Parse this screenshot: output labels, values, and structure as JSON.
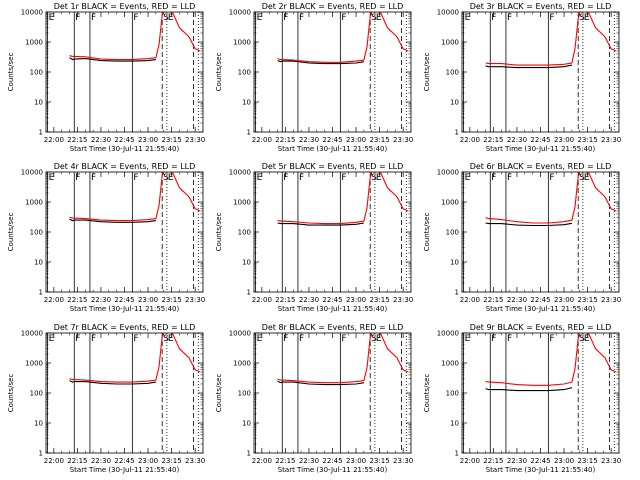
{
  "figure": {
    "xlabel": "Start Time (30-Jul-11 21:55:40)",
    "ylabel": "Counts/sec",
    "x_ticks": [
      "22:00",
      "22:15",
      "22:30",
      "22:45",
      "23:00",
      "23:15",
      "23:30"
    ],
    "y_ticks": [
      "1",
      "10",
      "100",
      "1000",
      "10000"
    ],
    "series_colors": {
      "events": "#000000",
      "lld": "#ff0000"
    }
  },
  "chart_data": [
    {
      "type": "line",
      "title": "Det 1r BLACK = Events, RED = LLD",
      "xlabel": "Start Time (30-Jul-11 21:55:40)",
      "ylabel": "Counts/sec",
      "y_scale": "log",
      "ylim": [
        1,
        10000
      ],
      "xlim": [
        "21:55",
        "23:35"
      ],
      "markers": [
        {
          "label": "E",
          "time": "21:56",
          "style": "solid"
        },
        {
          "label": "F",
          "time": "22:13",
          "style": "solid"
        },
        {
          "label": "F",
          "time": "22:23",
          "style": "solid"
        },
        {
          "label": "F",
          "time": "22:50",
          "style": "solid"
        },
        {
          "label": "S",
          "time": "23:09",
          "style": "dashed"
        },
        {
          "label": "E",
          "time": "23:12",
          "style": "dotted"
        },
        {
          "label": "",
          "time": "23:29",
          "style": "dashed"
        },
        {
          "label": "",
          "time": "23:32",
          "style": "dotted"
        }
      ],
      "x": [
        "22:10",
        "22:12",
        "22:13",
        "22:20",
        "22:30",
        "22:40",
        "22:50",
        "23:00",
        "23:05",
        "23:07",
        "23:09",
        "23:11",
        "23:14",
        "23:20",
        "23:26",
        "23:30",
        "23:33"
      ],
      "series": [
        {
          "values": [
            300,
            260,
            270,
            280,
            240,
            230,
            230,
            240,
            260,
            null,
            null,
            null,
            null,
            null,
            null,
            null,
            null
          ]
        },
        {
          "values": [
            350,
            330,
            330,
            320,
            270,
            260,
            260,
            280,
            300,
            800,
            8000,
            15000,
            15000,
            3000,
            1500,
            600,
            500
          ]
        }
      ]
    },
    {
      "type": "line",
      "title": "Det 2r BLACK = Events, RED = LLD",
      "xlabel": "Start Time (30-Jul-11 21:55:40)",
      "ylabel": "Counts/sec",
      "y_scale": "log",
      "ylim": [
        1,
        10000
      ],
      "xlim": [
        "21:55",
        "23:35"
      ],
      "markers": [
        {
          "label": "E",
          "time": "21:56",
          "style": "solid"
        },
        {
          "label": "F",
          "time": "22:13",
          "style": "solid"
        },
        {
          "label": "F",
          "time": "22:23",
          "style": "solid"
        },
        {
          "label": "F",
          "time": "22:50",
          "style": "solid"
        },
        {
          "label": "S",
          "time": "23:09",
          "style": "dashed"
        },
        {
          "label": "E",
          "time": "23:12",
          "style": "dotted"
        },
        {
          "label": "",
          "time": "23:29",
          "style": "dashed"
        },
        {
          "label": "",
          "time": "23:32",
          "style": "dotted"
        }
      ],
      "x": [
        "22:10",
        "22:12",
        "22:13",
        "22:20",
        "22:30",
        "22:40",
        "22:50",
        "23:00",
        "23:05",
        "23:07",
        "23:09",
        "23:11",
        "23:14",
        "23:20",
        "23:26",
        "23:30",
        "23:33"
      ],
      "series": [
        {
          "values": [
            240,
            220,
            230,
            230,
            200,
            190,
            190,
            200,
            220,
            null,
            null,
            null,
            null,
            null,
            null,
            null,
            null
          ]
        },
        {
          "values": [
            280,
            260,
            260,
            250,
            220,
            210,
            210,
            230,
            250,
            700,
            7000,
            15000,
            15000,
            3000,
            1500,
            600,
            500
          ]
        }
      ]
    },
    {
      "type": "line",
      "title": "Det 3r BLACK = Events, RED = LLD",
      "xlabel": "Start Time (30-Jul-11 21:55:40)",
      "ylabel": "Counts/sec",
      "y_scale": "log",
      "ylim": [
        1,
        10000
      ],
      "xlim": [
        "21:55",
        "23:35"
      ],
      "markers": [
        {
          "label": "E",
          "time": "21:56",
          "style": "solid"
        },
        {
          "label": "F",
          "time": "22:13",
          "style": "solid"
        },
        {
          "label": "F",
          "time": "22:23",
          "style": "solid"
        },
        {
          "label": "F",
          "time": "22:50",
          "style": "solid"
        },
        {
          "label": "S",
          "time": "23:09",
          "style": "dashed"
        },
        {
          "label": "E",
          "time": "23:12",
          "style": "dotted"
        },
        {
          "label": "",
          "time": "23:29",
          "style": "dashed"
        },
        {
          "label": "",
          "time": "23:32",
          "style": "dotted"
        }
      ],
      "x": [
        "22:10",
        "22:12",
        "22:13",
        "22:20",
        "22:30",
        "22:40",
        "22:50",
        "23:00",
        "23:05",
        "23:07",
        "23:09",
        "23:11",
        "23:14",
        "23:20",
        "23:26",
        "23:30",
        "23:33"
      ],
      "series": [
        {
          "values": [
            160,
            150,
            150,
            150,
            140,
            140,
            140,
            150,
            170,
            null,
            null,
            null,
            null,
            null,
            null,
            null,
            null
          ]
        },
        {
          "values": [
            200,
            190,
            190,
            190,
            170,
            170,
            170,
            180,
            200,
            600,
            6000,
            15000,
            15000,
            3000,
            1500,
            600,
            500
          ]
        }
      ]
    },
    {
      "type": "line",
      "title": "Det 4r BLACK = Events, RED = LLD",
      "xlabel": "Start Time (30-Jul-11 21:55:40)",
      "ylabel": "Counts/sec",
      "y_scale": "log",
      "ylim": [
        1,
        10000
      ],
      "xlim": [
        "21:55",
        "23:35"
      ],
      "markers": [
        {
          "label": "E",
          "time": "21:56",
          "style": "solid"
        },
        {
          "label": "F",
          "time": "22:13",
          "style": "solid"
        },
        {
          "label": "F",
          "time": "22:23",
          "style": "solid"
        },
        {
          "label": "F",
          "time": "22:50",
          "style": "solid"
        },
        {
          "label": "S",
          "time": "23:09",
          "style": "dashed"
        },
        {
          "label": "E",
          "time": "23:12",
          "style": "dotted"
        },
        {
          "label": "",
          "time": "23:29",
          "style": "dashed"
        },
        {
          "label": "",
          "time": "23:32",
          "style": "dotted"
        }
      ],
      "x": [
        "22:10",
        "22:12",
        "22:13",
        "22:20",
        "22:30",
        "22:40",
        "22:50",
        "23:00",
        "23:05",
        "23:07",
        "23:09",
        "23:11",
        "23:14",
        "23:20",
        "23:26",
        "23:30",
        "23:33"
      ],
      "series": [
        {
          "values": [
            270,
            240,
            250,
            250,
            220,
            210,
            210,
            220,
            240,
            null,
            null,
            null,
            null,
            null,
            null,
            null,
            null
          ]
        },
        {
          "values": [
            310,
            290,
            290,
            280,
            250,
            240,
            240,
            260,
            280,
            750,
            7500,
            15000,
            15000,
            3000,
            1500,
            600,
            500
          ]
        }
      ]
    },
    {
      "type": "line",
      "title": "Det 5r BLACK = Events, RED = LLD",
      "xlabel": "Start Time (30-Jul-11 21:55:40)",
      "ylabel": "Counts/sec",
      "y_scale": "log",
      "ylim": [
        1,
        10000
      ],
      "xlim": [
        "21:55",
        "23:35"
      ],
      "markers": [
        {
          "label": "E",
          "time": "21:56",
          "style": "solid"
        },
        {
          "label": "F",
          "time": "22:13",
          "style": "solid"
        },
        {
          "label": "F",
          "time": "22:23",
          "style": "solid"
        },
        {
          "label": "F",
          "time": "22:50",
          "style": "solid"
        },
        {
          "label": "S",
          "time": "23:09",
          "style": "dashed"
        },
        {
          "label": "E",
          "time": "23:12",
          "style": "dotted"
        },
        {
          "label": "",
          "time": "23:29",
          "style": "dashed"
        },
        {
          "label": "",
          "time": "23:32",
          "style": "dotted"
        }
      ],
      "x": [
        "22:10",
        "22:12",
        "22:13",
        "22:20",
        "22:30",
        "22:40",
        "22:50",
        "23:00",
        "23:05",
        "23:07",
        "23:09",
        "23:11",
        "23:14",
        "23:20",
        "23:26",
        "23:30",
        "23:33"
      ],
      "series": [
        {
          "values": [
            200,
            190,
            190,
            190,
            170,
            170,
            170,
            180,
            200,
            null,
            null,
            null,
            null,
            null,
            null,
            null,
            null
          ]
        },
        {
          "values": [
            240,
            230,
            230,
            220,
            200,
            190,
            190,
            210,
            230,
            650,
            6500,
            15000,
            15000,
            3000,
            1500,
            600,
            500
          ]
        }
      ]
    },
    {
      "type": "line",
      "title": "Det 6r BLACK = Events, RED = LLD",
      "xlabel": "Start Time (30-Jul-11 21:55:40)",
      "ylabel": "Counts/sec",
      "y_scale": "log",
      "ylim": [
        1,
        10000
      ],
      "xlim": [
        "21:55",
        "23:35"
      ],
      "markers": [
        {
          "label": "E",
          "time": "21:56",
          "style": "solid"
        },
        {
          "label": "F",
          "time": "22:13",
          "style": "solid"
        },
        {
          "label": "F",
          "time": "22:23",
          "style": "solid"
        },
        {
          "label": "F",
          "time": "22:50",
          "style": "solid"
        },
        {
          "label": "S",
          "time": "23:09",
          "style": "dashed"
        },
        {
          "label": "E",
          "time": "23:12",
          "style": "dotted"
        },
        {
          "label": "",
          "time": "23:29",
          "style": "dashed"
        },
        {
          "label": "",
          "time": "23:32",
          "style": "dotted"
        }
      ],
      "x": [
        "22:10",
        "22:12",
        "22:13",
        "22:20",
        "22:30",
        "22:40",
        "22:50",
        "23:00",
        "23:05",
        "23:07",
        "23:09",
        "23:11",
        "23:14",
        "23:20",
        "23:26",
        "23:30",
        "23:33"
      ],
      "series": [
        {
          "values": [
            200,
            190,
            190,
            190,
            170,
            165,
            165,
            175,
            195,
            null,
            null,
            null,
            null,
            null,
            null,
            null,
            null
          ]
        },
        {
          "values": [
            300,
            280,
            280,
            260,
            220,
            200,
            200,
            220,
            250,
            700,
            7000,
            15000,
            15000,
            3000,
            1500,
            600,
            500
          ]
        }
      ]
    },
    {
      "type": "line",
      "title": "Det 7r BLACK = Events, RED = LLD",
      "xlabel": "Start Time (30-Jul-11 21:55:40)",
      "ylabel": "Counts/sec",
      "y_scale": "log",
      "ylim": [
        1,
        10000
      ],
      "xlim": [
        "21:55",
        "23:35"
      ],
      "markers": [
        {
          "label": "E",
          "time": "21:56",
          "style": "solid"
        },
        {
          "label": "F",
          "time": "22:13",
          "style": "solid"
        },
        {
          "label": "F",
          "time": "22:23",
          "style": "solid"
        },
        {
          "label": "F",
          "time": "22:50",
          "style": "solid"
        },
        {
          "label": "S",
          "time": "23:09",
          "style": "dashed"
        },
        {
          "label": "E",
          "time": "23:12",
          "style": "dotted"
        },
        {
          "label": "",
          "time": "23:29",
          "style": "dashed"
        },
        {
          "label": "",
          "time": "23:32",
          "style": "dotted"
        }
      ],
      "x": [
        "22:10",
        "22:12",
        "22:13",
        "22:20",
        "22:30",
        "22:40",
        "22:50",
        "23:00",
        "23:05",
        "23:07",
        "23:09",
        "23:11",
        "23:14",
        "23:20",
        "23:26",
        "23:30",
        "23:33"
      ],
      "series": [
        {
          "values": [
            260,
            230,
            240,
            240,
            210,
            200,
            200,
            210,
            230,
            null,
            null,
            null,
            null,
            null,
            null,
            null,
            null
          ]
        },
        {
          "values": [
            300,
            280,
            280,
            270,
            240,
            230,
            230,
            250,
            270,
            750,
            7500,
            15000,
            15000,
            3000,
            1500,
            600,
            500
          ]
        }
      ]
    },
    {
      "type": "line",
      "title": "Det 8r BLACK = Events, RED = LLD",
      "xlabel": "Start Time (30-Jul-11 21:55:40)",
      "ylabel": "Counts/sec",
      "y_scale": "log",
      "ylim": [
        1,
        10000
      ],
      "xlim": [
        "21:55",
        "23:35"
      ],
      "markers": [
        {
          "label": "E",
          "time": "21:56",
          "style": "solid"
        },
        {
          "label": "F",
          "time": "22:13",
          "style": "solid"
        },
        {
          "label": "F",
          "time": "22:23",
          "style": "solid"
        },
        {
          "label": "F",
          "time": "22:50",
          "style": "solid"
        },
        {
          "label": "S",
          "time": "23:09",
          "style": "dashed"
        },
        {
          "label": "E",
          "time": "23:12",
          "style": "dotted"
        },
        {
          "label": "",
          "time": "23:29",
          "style": "dashed"
        },
        {
          "label": "",
          "time": "23:32",
          "style": "dotted"
        }
      ],
      "x": [
        "22:10",
        "22:12",
        "22:13",
        "22:20",
        "22:30",
        "22:40",
        "22:50",
        "23:00",
        "23:05",
        "23:07",
        "23:09",
        "23:11",
        "23:14",
        "23:20",
        "23:26",
        "23:30",
        "23:33"
      ],
      "series": [
        {
          "values": [
            250,
            220,
            230,
            230,
            200,
            190,
            190,
            200,
            220,
            null,
            null,
            null,
            null,
            null,
            null,
            null,
            null
          ]
        },
        {
          "values": [
            290,
            270,
            270,
            260,
            230,
            220,
            220,
            240,
            260,
            700,
            7000,
            15000,
            15000,
            3000,
            1500,
            600,
            500
          ]
        }
      ]
    },
    {
      "type": "line",
      "title": "Det 9r BLACK = Events, RED = LLD",
      "xlabel": "Start Time (30-Jul-11 21:55:40)",
      "ylabel": "Counts/sec",
      "y_scale": "log",
      "ylim": [
        1,
        10000
      ],
      "xlim": [
        "21:55",
        "23:35"
      ],
      "markers": [
        {
          "label": "E",
          "time": "21:56",
          "style": "solid"
        },
        {
          "label": "F",
          "time": "22:13",
          "style": "solid"
        },
        {
          "label": "F",
          "time": "22:23",
          "style": "solid"
        },
        {
          "label": "F",
          "time": "22:50",
          "style": "solid"
        },
        {
          "label": "S",
          "time": "23:09",
          "style": "dashed"
        },
        {
          "label": "E",
          "time": "23:12",
          "style": "dotted"
        },
        {
          "label": "",
          "time": "23:29",
          "style": "dashed"
        },
        {
          "label": "",
          "time": "23:32",
          "style": "dotted"
        }
      ],
      "x": [
        "22:10",
        "22:12",
        "22:13",
        "22:20",
        "22:30",
        "22:40",
        "22:50",
        "23:00",
        "23:05",
        "23:07",
        "23:09",
        "23:11",
        "23:14",
        "23:20",
        "23:26",
        "23:30",
        "23:33"
      ],
      "series": [
        {
          "values": [
            140,
            130,
            130,
            130,
            120,
            120,
            120,
            130,
            150,
            null,
            null,
            null,
            null,
            null,
            null,
            null,
            null
          ]
        },
        {
          "values": [
            240,
            230,
            230,
            220,
            190,
            180,
            180,
            200,
            230,
            650,
            6500,
            15000,
            15000,
            3000,
            1500,
            600,
            500
          ]
        }
      ]
    }
  ]
}
